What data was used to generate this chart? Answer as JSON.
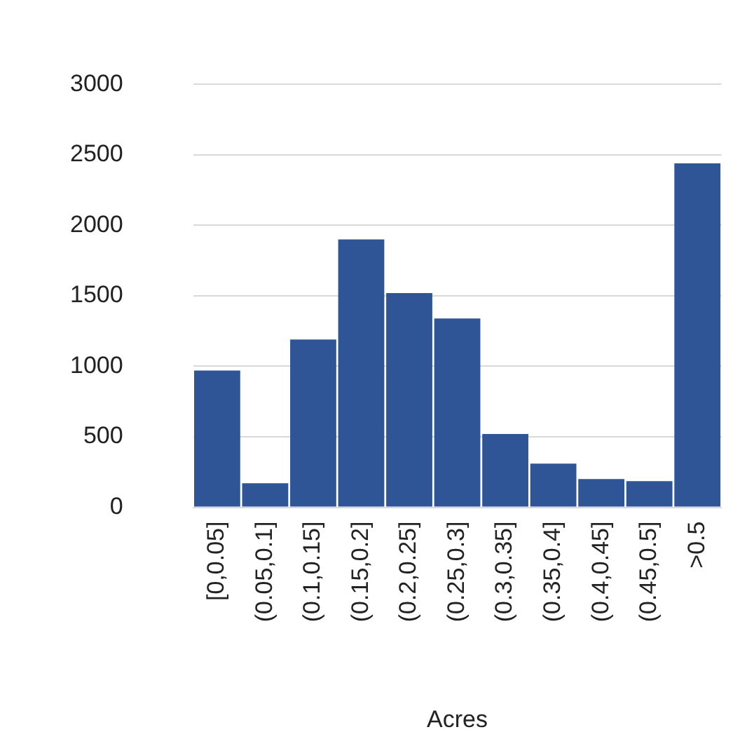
{
  "chart_data": {
    "type": "bar",
    "xlabel": "Acres",
    "categories": [
      "[0,0.05]",
      "(0.05,0.1]",
      "(0.1,0.15]",
      "(0.15,0.2]",
      "(0.2,0.25]",
      "(0.25,0.3]",
      "(0.3,0.35]",
      "(0.35,0.4]",
      "(0.4,0.45]",
      "(0.45,0.5]",
      ">0.5"
    ],
    "values": [
      970,
      170,
      1190,
      1900,
      1520,
      1340,
      520,
      310,
      200,
      185,
      2440
    ],
    "color": "#2f5597",
    "ylim": [
      0,
      3000
    ],
    "yticks": [
      0,
      500,
      1000,
      1500,
      2000,
      2500,
      3000
    ],
    "grid": "y",
    "legend": false
  }
}
